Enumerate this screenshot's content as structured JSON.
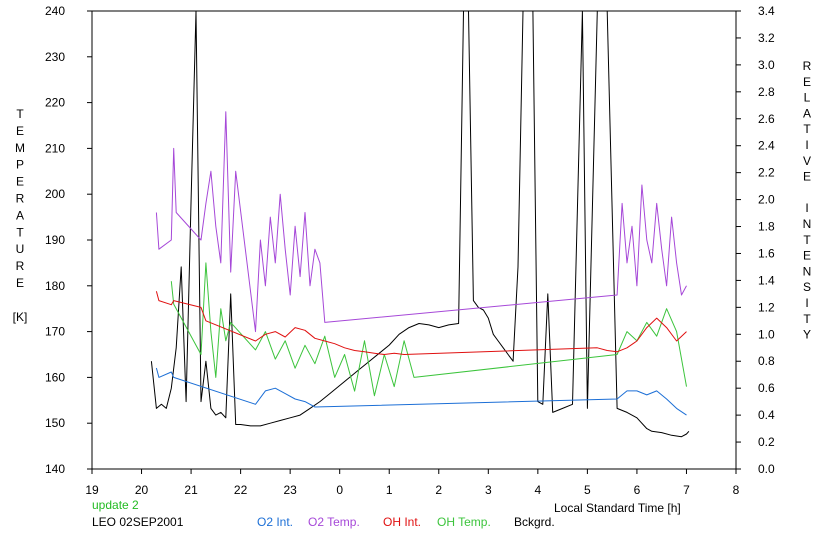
{
  "chart_data": {
    "type": "line",
    "xlabel": "Local Standard Time [h]",
    "ylabel_left": [
      "T",
      "E",
      "M",
      "P",
      "E",
      "R",
      "A",
      "T",
      "U",
      "R",
      "E",
      "",
      "[K]"
    ],
    "ylabel_right": [
      "R",
      "E",
      "L",
      "A",
      "T",
      "I",
      "V",
      "E",
      "",
      "I",
      "N",
      "T",
      "E",
      "N",
      "S",
      "I",
      "T",
      "Y"
    ],
    "x_ticks": [
      "19",
      "20",
      "21",
      "22",
      "23",
      "0",
      "1",
      "2",
      "3",
      "4",
      "5",
      "6",
      "7",
      "8"
    ],
    "x_range": [
      19,
      32
    ],
    "y_left_ticks": [
      "140",
      "150",
      "160",
      "170",
      "180",
      "190",
      "200",
      "210",
      "220",
      "230",
      "240"
    ],
    "y_left_range": [
      140,
      240
    ],
    "y_right_ticks": [
      "0.0",
      "0.2",
      "0.4",
      "0.6",
      "0.8",
      "1.0",
      "1.2",
      "1.4",
      "1.6",
      "1.8",
      "2.0",
      "2.2",
      "2.4",
      "2.6",
      "2.8",
      "3.0",
      "3.2",
      "3.4"
    ],
    "y_right_range": [
      0.0,
      3.4
    ],
    "update_text": "update 2",
    "station_text": "LEO 02SEP2001",
    "legend": [
      "O2 Int.",
      "O2 Temp.",
      "OH Int.",
      "OH Temp.",
      "Bckgrd."
    ],
    "colors": {
      "o2_int": "#1c6fd6",
      "o2_temp": "#a648d8",
      "oh_int": "#e01010",
      "oh_temp": "#3cc43c",
      "bckgrd": "#000000",
      "update": "#22bb22"
    },
    "series": [
      {
        "name": "Bckgrd.",
        "axis": "right",
        "x": [
          20.2,
          20.3,
          20.4,
          20.5,
          20.6,
          20.7,
          20.8,
          20.9,
          21.0,
          21.1,
          21.2,
          21.3,
          21.4,
          21.5,
          21.6,
          21.7,
          21.8,
          21.9,
          22.0,
          22.2,
          22.4,
          22.6,
          22.8,
          23.0,
          23.2,
          23.4,
          23.6,
          23.8,
          24.0,
          24.2,
          24.4,
          24.6,
          24.8,
          25.0,
          25.2,
          25.4,
          25.6,
          25.8,
          26.0,
          26.2,
          26.4,
          26.5,
          26.55,
          26.6,
          26.7,
          26.8,
          26.9,
          27.0,
          27.1,
          27.2,
          27.3,
          27.4,
          27.5,
          27.6,
          27.7,
          27.8,
          27.9,
          28.0,
          28.1,
          28.2,
          28.3,
          28.5,
          28.7,
          28.9,
          29.0,
          29.2,
          29.4,
          29.6,
          29.8,
          30.0,
          30.2,
          30.3,
          30.5,
          30.7,
          30.9,
          31.0,
          31.05
        ],
        "y": [
          0.8,
          0.45,
          0.48,
          0.45,
          0.6,
          0.9,
          1.5,
          0.5,
          2.0,
          3.4,
          0.5,
          0.8,
          0.45,
          0.4,
          0.42,
          0.38,
          1.3,
          0.33,
          0.33,
          0.32,
          0.32,
          0.34,
          0.36,
          0.38,
          0.4,
          0.45,
          0.5,
          0.56,
          0.62,
          0.68,
          0.74,
          0.8,
          0.86,
          0.92,
          1.0,
          1.05,
          1.08,
          1.07,
          1.05,
          1.07,
          1.08,
          3.4,
          3.4,
          3.4,
          1.25,
          1.2,
          1.18,
          1.12,
          1.0,
          0.95,
          0.9,
          0.85,
          0.8,
          1.5,
          3.4,
          3.4,
          3.4,
          0.5,
          0.48,
          1.3,
          0.42,
          0.45,
          0.48,
          3.4,
          0.45,
          3.4,
          3.4,
          0.45,
          0.42,
          0.38,
          0.3,
          0.28,
          0.27,
          0.25,
          0.24,
          0.26,
          0.28
        ]
      },
      {
        "name": "O2 Temp.",
        "axis": "left",
        "x": [
          20.3,
          20.35,
          20.6,
          20.65,
          20.7,
          21.2,
          21.3,
          21.4,
          21.5,
          21.6,
          21.7,
          21.8,
          21.9,
          22.3,
          22.4,
          22.5,
          22.6,
          22.7,
          22.8,
          22.9,
          23.0,
          23.1,
          23.2,
          23.3,
          23.4,
          23.5,
          23.6,
          23.7,
          29.6,
          29.7,
          29.8,
          29.9,
          30.0,
          30.1,
          30.2,
          30.3,
          30.4,
          30.5,
          30.6,
          30.7,
          30.8,
          30.9,
          31.0
        ],
        "y": [
          196,
          188,
          190,
          210,
          196,
          190,
          198,
          205,
          193,
          185,
          218,
          183,
          205,
          170,
          190,
          180,
          195,
          185,
          200,
          188,
          178,
          193,
          182,
          196,
          180,
          188,
          185,
          172,
          178,
          198,
          185,
          193,
          180,
          202,
          190,
          185,
          198,
          188,
          180,
          195,
          185,
          178,
          180
        ]
      },
      {
        "name": "OH Temp.",
        "axis": "left",
        "x": [
          20.6,
          20.65,
          21.2,
          21.3,
          21.4,
          21.5,
          21.6,
          21.7,
          21.8,
          22.3,
          22.5,
          22.7,
          22.9,
          23.1,
          23.3,
          23.5,
          23.7,
          23.9,
          24.1,
          24.3,
          24.5,
          24.7,
          24.9,
          25.1,
          25.3,
          25.5,
          29.6,
          29.8,
          30.0,
          30.2,
          30.4,
          30.6,
          30.8,
          31.0
        ],
        "y": [
          181,
          176,
          165,
          185,
          170,
          160,
          175,
          168,
          172,
          166,
          170,
          164,
          168,
          162,
          167,
          163,
          169,
          160,
          165,
          157,
          168,
          156,
          165,
          158,
          168,
          160,
          165,
          170,
          168,
          172,
          169,
          175,
          170,
          158
        ]
      },
      {
        "name": "OH Int.",
        "axis": "right",
        "x": [
          20.3,
          20.35,
          20.6,
          20.65,
          21.2,
          21.3,
          22.3,
          22.5,
          22.7,
          22.9,
          23.1,
          23.3,
          23.5,
          23.7,
          23.9,
          24.1,
          24.3,
          24.5,
          24.7,
          24.9,
          25.1,
          25.3,
          29.2,
          29.4,
          29.6,
          29.8,
          30.0,
          30.2,
          30.4,
          30.6,
          30.8,
          31.0
        ],
        "y": [
          1.32,
          1.25,
          1.22,
          1.25,
          1.2,
          1.1,
          0.95,
          1.0,
          1.02,
          0.98,
          1.05,
          1.03,
          0.97,
          0.95,
          0.93,
          0.9,
          0.88,
          0.87,
          0.86,
          0.85,
          0.86,
          0.85,
          0.9,
          0.88,
          0.87,
          0.9,
          0.95,
          1.05,
          1.12,
          1.05,
          0.95,
          1.02
        ]
      },
      {
        "name": "O2 Int.",
        "axis": "right",
        "x": [
          20.3,
          20.35,
          20.6,
          20.65,
          22.3,
          22.5,
          22.7,
          22.9,
          23.1,
          23.3,
          23.5,
          29.6,
          29.8,
          30.0,
          30.2,
          30.4,
          30.6,
          30.8,
          31.0
        ],
        "y": [
          0.75,
          0.68,
          0.72,
          0.68,
          0.48,
          0.58,
          0.6,
          0.56,
          0.52,
          0.5,
          0.46,
          0.52,
          0.58,
          0.58,
          0.55,
          0.58,
          0.52,
          0.45,
          0.4
        ]
      }
    ]
  }
}
